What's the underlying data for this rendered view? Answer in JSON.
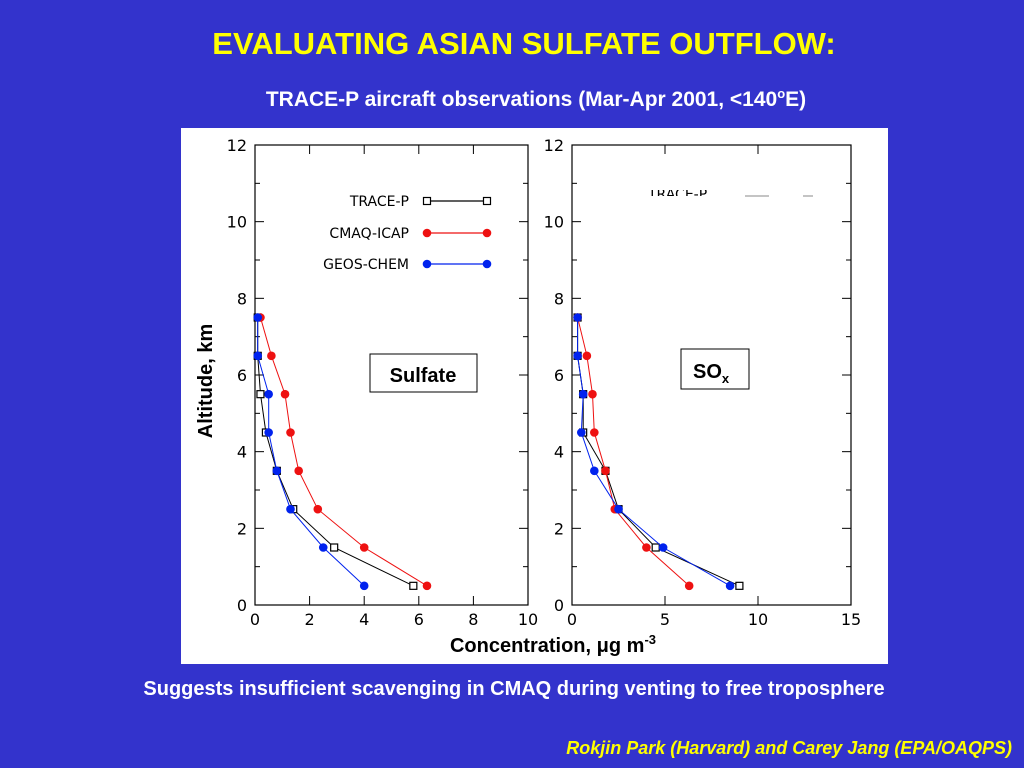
{
  "slide": {
    "title": "EVALUATING ASIAN SULFATE OUTFLOW:",
    "subtitle_main": "TRACE-P aircraft observations (Mar-Apr 2001, <140",
    "subtitle_sup": "o",
    "subtitle_end": "E)",
    "caption": "Suggests insufficient scavenging in CMAQ during venting to free troposphere",
    "credit": "Rokjin Park (Harvard) and Carey Jang (EPA/OAQPS)"
  },
  "colors": {
    "background": "#3333cc",
    "title": "#ffff00",
    "trace_p": "#000000",
    "cmaq_icap": "#ee1111",
    "geos_chem": "#0022ee"
  },
  "chart_data": [
    {
      "type": "line",
      "label": "Sulfate",
      "ylabel": "Altitude, km",
      "xlabel_main": "Concentration, ",
      "xlabel_mu": "μ",
      "xlabel_unit": "g m",
      "xlabel_sup": "-3",
      "xlim": [
        0,
        10
      ],
      "ylim": [
        0,
        12
      ],
      "xticks": [
        0,
        2,
        4,
        6,
        8,
        10
      ],
      "yticks": [
        0,
        2,
        4,
        6,
        8,
        10,
        12
      ],
      "legend": [
        "TRACE-P",
        "CMAQ-ICAP",
        "GEOS-CHEM"
      ],
      "series": [
        {
          "name": "TRACE-P",
          "marker": "square-open",
          "points": [
            [
              5.8,
              0.5
            ],
            [
              2.9,
              1.5
            ],
            [
              1.4,
              2.5
            ],
            [
              0.8,
              3.5
            ],
            [
              0.4,
              4.5
            ],
            [
              0.2,
              5.5
            ],
            [
              0.1,
              6.5
            ],
            [
              0.1,
              7.5
            ]
          ]
        },
        {
          "name": "CMAQ-ICAP",
          "marker": "dot",
          "points": [
            [
              6.3,
              0.5
            ],
            [
              4.0,
              1.5
            ],
            [
              2.3,
              2.5
            ],
            [
              1.6,
              3.5
            ],
            [
              1.3,
              4.5
            ],
            [
              1.1,
              5.5
            ],
            [
              0.6,
              6.5
            ],
            [
              0.2,
              7.5
            ]
          ]
        },
        {
          "name": "GEOS-CHEM",
          "marker": "dot",
          "points": [
            [
              4.0,
              0.5
            ],
            [
              2.5,
              1.5
            ],
            [
              1.3,
              2.5
            ],
            [
              0.8,
              3.5
            ],
            [
              0.5,
              4.5
            ],
            [
              0.5,
              5.5
            ],
            [
              0.1,
              6.5
            ],
            [
              0.1,
              7.5
            ]
          ]
        }
      ]
    },
    {
      "type": "line",
      "label_main": "SO",
      "label_sub": "x",
      "xlim": [
        0,
        15
      ],
      "ylim": [
        0,
        12
      ],
      "xticks": [
        0,
        5,
        10,
        15
      ],
      "yticks": [
        0,
        2,
        4,
        6,
        8,
        10,
        12
      ],
      "legend_partial": "TRACE-P",
      "series": [
        {
          "name": "TRACE-P",
          "marker": "square-open",
          "points": [
            [
              9.0,
              0.5
            ],
            [
              4.5,
              1.5
            ],
            [
              2.5,
              2.5
            ],
            [
              1.8,
              3.5
            ],
            [
              0.6,
              4.5
            ],
            [
              0.6,
              5.5
            ],
            [
              0.3,
              6.5
            ],
            [
              0.3,
              7.5
            ]
          ]
        },
        {
          "name": "CMAQ-ICAP",
          "marker": "dot",
          "points": [
            [
              6.3,
              0.5
            ],
            [
              4.0,
              1.5
            ],
            [
              2.3,
              2.5
            ],
            [
              1.8,
              3.5
            ],
            [
              1.2,
              4.5
            ],
            [
              1.1,
              5.5
            ],
            [
              0.8,
              6.5
            ],
            [
              0.3,
              7.5
            ]
          ]
        },
        {
          "name": "GEOS-CHEM",
          "marker": "dot",
          "points": [
            [
              8.5,
              0.5
            ],
            [
              4.9,
              1.5
            ],
            [
              2.5,
              2.5
            ],
            [
              1.2,
              3.5
            ],
            [
              0.5,
              4.5
            ],
            [
              0.6,
              5.5
            ],
            [
              0.3,
              6.5
            ],
            [
              0.3,
              7.5
            ]
          ]
        }
      ]
    }
  ]
}
